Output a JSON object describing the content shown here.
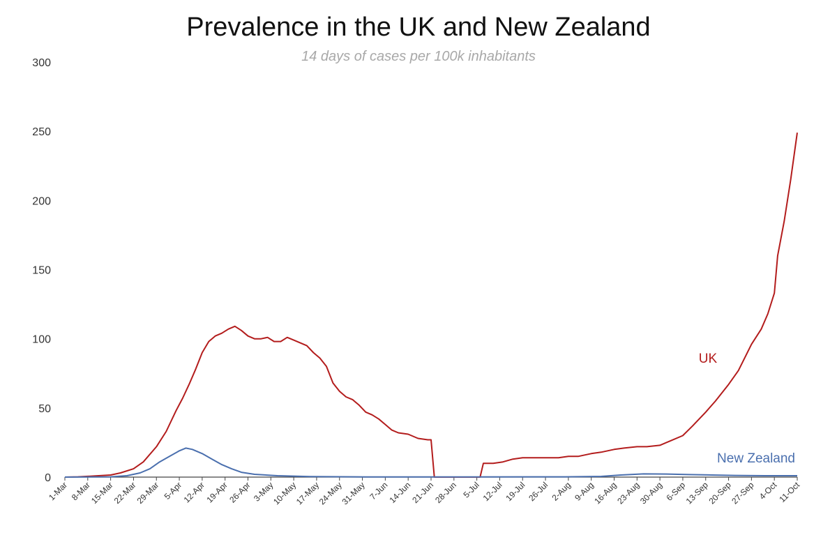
{
  "chart_data": {
    "type": "line",
    "title": "Prevalence in the UK and New Zealand",
    "subtitle": "14 days of cases per 100k inhabitants",
    "xlabel": "",
    "ylabel": "",
    "ylim": [
      0,
      300
    ],
    "yticks": [
      "0",
      "50",
      "100",
      "150",
      "200",
      "250",
      "300"
    ],
    "xticks": [
      "1-Mar",
      "8-Mar",
      "15-Mar",
      "22-Mar",
      "29-Mar",
      "5-Apr",
      "12-Apr",
      "19-Apr",
      "26-Apr",
      "3-May",
      "10-May",
      "17-May",
      "24-May",
      "31-May",
      "7-Jun",
      "14-Jun",
      "21-Jun",
      "28-Jun",
      "5-Jul",
      "12-Jul",
      "19-Jul",
      "26-Jul",
      "2-Aug",
      "9-Aug",
      "16-Aug",
      "23-Aug",
      "30-Aug",
      "6-Sep",
      "13-Sep",
      "20-Sep",
      "27-Sep",
      "4-Oct",
      "11-Oct"
    ],
    "grid": false,
    "legend": "inline labels",
    "series": [
      {
        "name": "UK",
        "color": "#b31c1c",
        "points": [
          [
            "1-Mar",
            0
          ],
          [
            "5-Mar",
            0.2
          ],
          [
            "10-Mar",
            0.8
          ],
          [
            "15-Mar",
            1.5
          ],
          [
            "18-Mar",
            3
          ],
          [
            "22-Mar",
            6
          ],
          [
            "25-Mar",
            11
          ],
          [
            "29-Mar",
            22
          ],
          [
            "1-Apr",
            33
          ],
          [
            "4-Apr",
            48
          ],
          [
            "6-Apr",
            57
          ],
          [
            "8-Apr",
            67
          ],
          [
            "10-Apr",
            78
          ],
          [
            "12-Apr",
            90
          ],
          [
            "14-Apr",
            98
          ],
          [
            "16-Apr",
            102
          ],
          [
            "18-Apr",
            104
          ],
          [
            "20-Apr",
            107
          ],
          [
            "22-Apr",
            109
          ],
          [
            "24-Apr",
            106
          ],
          [
            "26-Apr",
            102
          ],
          [
            "28-Apr",
            100
          ],
          [
            "30-Apr",
            100
          ],
          [
            "2-May",
            101
          ],
          [
            "4-May",
            98
          ],
          [
            "6-May",
            98
          ],
          [
            "8-May",
            101
          ],
          [
            "10-May",
            99
          ],
          [
            "12-May",
            97
          ],
          [
            "14-May",
            95
          ],
          [
            "16-May",
            90
          ],
          [
            "18-May",
            86
          ],
          [
            "20-May",
            80
          ],
          [
            "22-May",
            68
          ],
          [
            "24-May",
            62
          ],
          [
            "26-May",
            58
          ],
          [
            "28-May",
            56
          ],
          [
            "30-May",
            52
          ],
          [
            "1-Jun",
            47
          ],
          [
            "3-Jun",
            45
          ],
          [
            "5-Jun",
            42
          ],
          [
            "7-Jun",
            38
          ],
          [
            "9-Jun",
            34
          ],
          [
            "11-Jun",
            32
          ],
          [
            "14-Jun",
            31
          ],
          [
            "17-Jun",
            28
          ],
          [
            "20-Jun",
            27
          ],
          [
            "21-Jun",
            27
          ],
          [
            "22-Jun",
            0
          ],
          [
            "5-Jul",
            0
          ],
          [
            "6-Jul",
            0
          ],
          [
            "7-Jul",
            10
          ],
          [
            "10-Jul",
            10
          ],
          [
            "13-Jul",
            11
          ],
          [
            "16-Jul",
            13
          ],
          [
            "19-Jul",
            14
          ],
          [
            "22-Jul",
            14
          ],
          [
            "26-Jul",
            14
          ],
          [
            "30-Jul",
            14
          ],
          [
            "2-Aug",
            15
          ],
          [
            "5-Aug",
            15
          ],
          [
            "9-Aug",
            17
          ],
          [
            "12-Aug",
            18
          ],
          [
            "16-Aug",
            20
          ],
          [
            "19-Aug",
            21
          ],
          [
            "23-Aug",
            22
          ],
          [
            "26-Aug",
            22
          ],
          [
            "30-Aug",
            23
          ],
          [
            "2-Sep",
            26
          ],
          [
            "6-Sep",
            30
          ],
          [
            "9-Sep",
            37
          ],
          [
            "13-Sep",
            47
          ],
          [
            "16-Sep",
            55
          ],
          [
            "20-Sep",
            67
          ],
          [
            "23-Sep",
            77
          ],
          [
            "27-Sep",
            96
          ],
          [
            "30-Sep",
            107
          ],
          [
            "2-Oct",
            118
          ],
          [
            "4-Oct",
            133
          ],
          [
            "5-Oct",
            160
          ],
          [
            "7-Oct",
            185
          ],
          [
            "9-Oct",
            215
          ],
          [
            "11-Oct",
            249
          ]
        ]
      },
      {
        "name": "New Zealand",
        "color": "#4a6fae",
        "points": [
          [
            "1-Mar",
            0
          ],
          [
            "15-Mar",
            0.2
          ],
          [
            "20-Mar",
            1
          ],
          [
            "24-Mar",
            3
          ],
          [
            "27-Mar",
            6
          ],
          [
            "30-Mar",
            11
          ],
          [
            "2-Apr",
            15
          ],
          [
            "5-Apr",
            19
          ],
          [
            "7-Apr",
            21
          ],
          [
            "9-Apr",
            20
          ],
          [
            "12-Apr",
            17
          ],
          [
            "15-Apr",
            13
          ],
          [
            "18-Apr",
            9
          ],
          [
            "21-Apr",
            6
          ],
          [
            "24-Apr",
            3.5
          ],
          [
            "28-Apr",
            2
          ],
          [
            "5-May",
            1
          ],
          [
            "15-May",
            0.4
          ],
          [
            "1-Jun",
            0.1
          ],
          [
            "1-Jul",
            0.1
          ],
          [
            "1-Aug",
            0.2
          ],
          [
            "12-Aug",
            0.5
          ],
          [
            "18-Aug",
            1.5
          ],
          [
            "25-Aug",
            2.3
          ],
          [
            "1-Sep",
            2.2
          ],
          [
            "8-Sep",
            1.8
          ],
          [
            "15-Sep",
            1.5
          ],
          [
            "22-Sep",
            1.2
          ],
          [
            "1-Oct",
            1
          ],
          [
            "11-Oct",
            1
          ]
        ]
      }
    ]
  }
}
